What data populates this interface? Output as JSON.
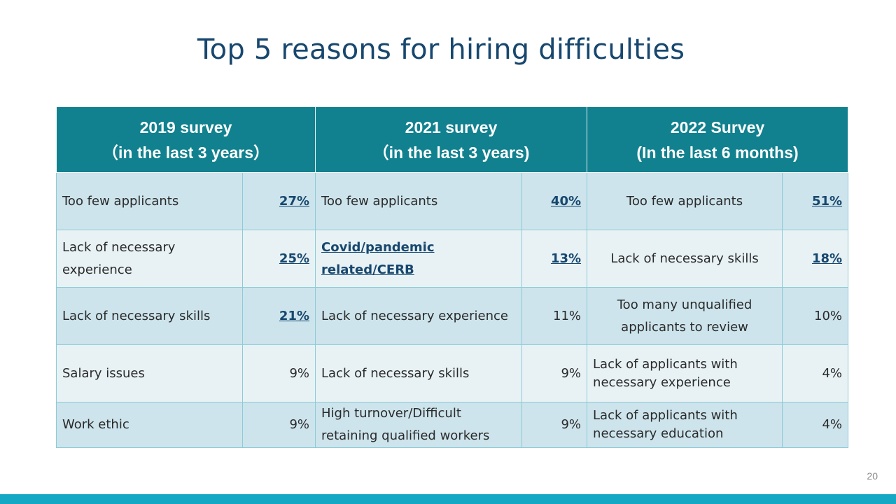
{
  "title": "Top 5 reasons for hiring difficulties",
  "headers": [
    {
      "line1": "2019 survey",
      "line2": "（in the last 3 years）"
    },
    {
      "line1": "2021 survey",
      "line2": "（in the last 3 years)"
    },
    {
      "line1": "2022 Survey",
      "line2": "(In the last 6 months)"
    }
  ],
  "rows": [
    [
      {
        "reason": "Too few applicants",
        "pct": "27%",
        "pct_emphasis": true
      },
      {
        "reason": "Too few applicants",
        "pct": "40%",
        "pct_emphasis": true
      },
      {
        "reason": "Too few applicants",
        "pct": "51%",
        "pct_emphasis": true
      }
    ],
    [
      {
        "reason": "Lack of necessary experience",
        "pct": "25%",
        "pct_emphasis": true
      },
      {
        "reason": "Covid/pandemic related/CERB",
        "reason_emphasis": true,
        "pct": "13%",
        "pct_emphasis": true
      },
      {
        "reason": "Lack of necessary skills",
        "pct": "18%",
        "pct_emphasis": true
      }
    ],
    [
      {
        "reason": "Lack of necessary skills",
        "pct": "21%",
        "pct_emphasis": true
      },
      {
        "reason": "Lack of necessary experience",
        "pct": "11%"
      },
      {
        "reason": "Too many unqualified applicants to review",
        "pct": "10%"
      }
    ],
    [
      {
        "reason": "Salary issues",
        "pct": "9%"
      },
      {
        "reason": "Lack of necessary skills",
        "pct": "9%"
      },
      {
        "reason": "Lack of applicants with necessary experience",
        "pct": "4%"
      }
    ],
    [
      {
        "reason": "Work ethic",
        "pct": "9%"
      },
      {
        "reason": "High turnover/Difficult retaining qualified workers",
        "pct": "9%"
      },
      {
        "reason": "Lack of applicants with necessary education",
        "pct": "4%"
      }
    ]
  ],
  "page_number": "20",
  "colors": {
    "title": "#17476e",
    "header_bg": "#11818f",
    "row_dark": "#cde4ec",
    "row_light": "#e8f2f5",
    "bottom_bar": "#14a8c4"
  }
}
